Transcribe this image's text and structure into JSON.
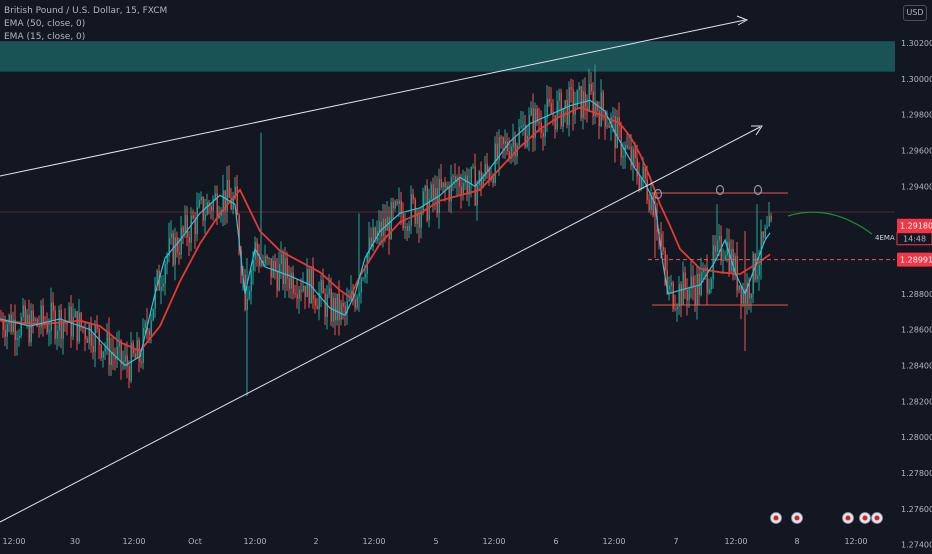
{
  "legend": {
    "symbol": "British Pound / U.S. Dollar, 15, FXCM",
    "ema50": "EMA (50, close, 0)",
    "ema15": "EMA (15, close, 0)"
  },
  "currency_button": "USD",
  "colors": {
    "background": "#131722",
    "bull": "#26a69a",
    "bear": "#ef5350",
    "ema50": "#e53935",
    "ema15": "#26c6da",
    "zone": "#1b5e5e",
    "price_label": "#f23645"
  },
  "chart_data": {
    "type": "line",
    "symbol": "GBP/USD",
    "timeframe": "15",
    "y_axis_labels": [
      "1.30200",
      "1.30000",
      "1.29800",
      "1.29600",
      "1.29400",
      "1.29180",
      "1.28991",
      "1.28800",
      "1.28600",
      "1.28400",
      "1.28200",
      "1.28000",
      "1.27800",
      "1.27600",
      "1.27400"
    ],
    "ylim": [
      1.2737,
      1.3044
    ],
    "x_axis_labels": [
      "12:00",
      "30",
      "12:00",
      "Oct",
      "12:00",
      "2",
      "12:00",
      "5",
      "12:00",
      "6",
      "12:00",
      "7",
      "12:00",
      "8",
      "12:00"
    ],
    "x_range": [
      0,
      932
    ],
    "series": [
      {
        "name": "EMA (50, close, 0)",
        "x": [
          0,
          40,
          80,
          100,
          120,
          140,
          160,
          180,
          200,
          220,
          240,
          260,
          280,
          300,
          320,
          340,
          350,
          360,
          380,
          400,
          420,
          440,
          460,
          480,
          500,
          520,
          540,
          560,
          580,
          600,
          620,
          630,
          640,
          650,
          660,
          670,
          680,
          700,
          720,
          740,
          760,
          770
        ],
        "values": [
          1.2865,
          1.2863,
          1.2865,
          1.2862,
          1.2853,
          1.2848,
          1.2862,
          1.2887,
          1.2908,
          1.2925,
          1.2938,
          1.2915,
          1.2904,
          1.2898,
          1.2892,
          1.2882,
          1.2878,
          1.289,
          1.2908,
          1.292,
          1.2925,
          1.2932,
          1.2935,
          1.2938,
          1.295,
          1.2962,
          1.2972,
          1.2979,
          1.2984,
          1.298,
          1.2975,
          1.2968,
          1.2958,
          1.2945,
          1.293,
          1.2918,
          1.2905,
          1.2894,
          1.2892,
          1.2891,
          1.2898,
          1.2902
        ]
      },
      {
        "name": "EMA (15, close, 0)",
        "x": [
          0,
          30,
          60,
          90,
          110,
          125,
          140,
          155,
          165,
          180,
          200,
          220,
          235,
          245,
          255,
          265,
          275,
          290,
          310,
          330,
          345,
          355,
          365,
          380,
          400,
          420,
          440,
          460,
          475,
          490,
          510,
          530,
          550,
          570,
          590,
          605,
          615,
          625,
          635,
          645,
          655,
          662,
          668,
          680,
          700,
          715,
          725,
          735,
          745,
          755,
          765,
          770
        ],
        "values": [
          1.2866,
          1.2862,
          1.2866,
          1.286,
          1.2848,
          1.284,
          1.2845,
          1.288,
          1.29,
          1.291,
          1.2925,
          1.2935,
          1.293,
          1.288,
          1.2905,
          1.2895,
          1.2893,
          1.289,
          1.2885,
          1.2872,
          1.2868,
          1.288,
          1.29,
          1.2915,
          1.2925,
          1.2928,
          1.2935,
          1.2945,
          1.294,
          1.295,
          1.2965,
          1.2975,
          1.298,
          1.2985,
          1.2988,
          1.2982,
          1.297,
          1.296,
          1.295,
          1.2942,
          1.293,
          1.29,
          1.288,
          1.2882,
          1.2885,
          1.2898,
          1.291,
          1.2892,
          1.288,
          1.2895,
          1.291,
          1.2914
        ]
      }
    ],
    "horizontal_zone": {
      "from": 1.3004,
      "to": 1.3021
    },
    "last_price": "1.29180",
    "countdown": "14:48",
    "prev_close": "1.28991",
    "annotation": "4EMA"
  }
}
